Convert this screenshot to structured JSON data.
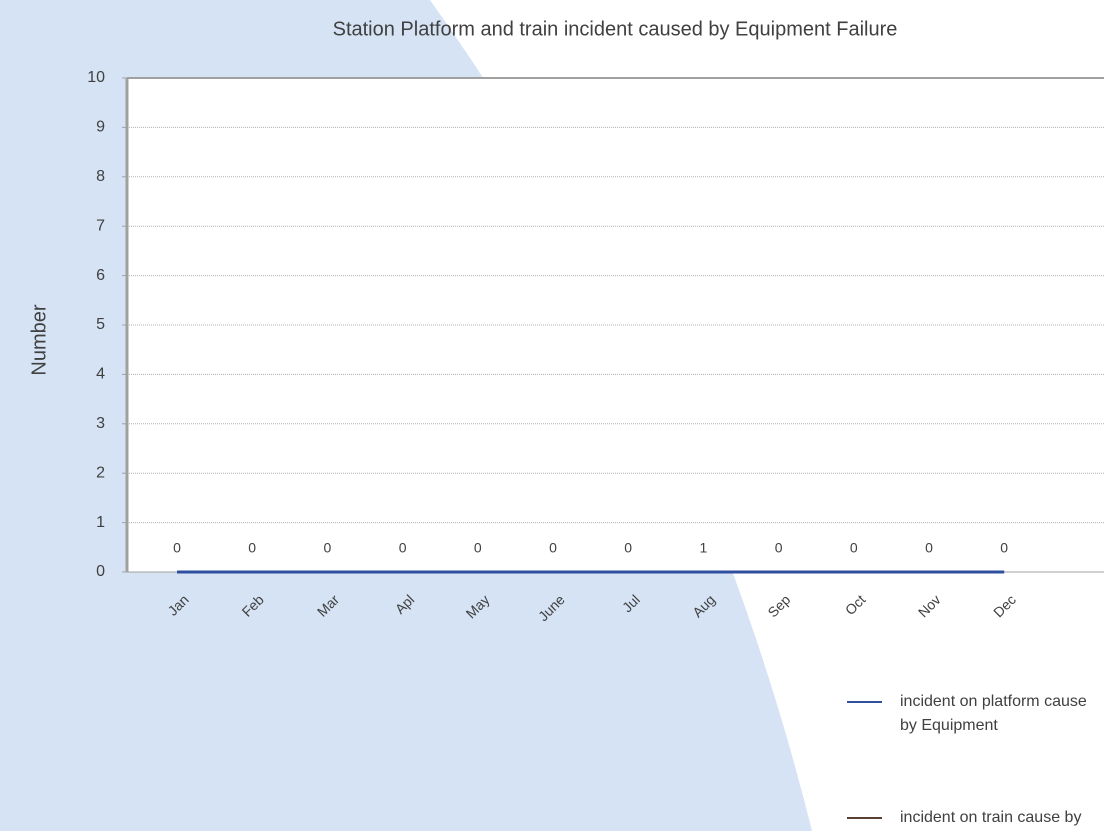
{
  "chart_data": {
    "type": "line",
    "title": "Station Platform and train incident caused by Equipment Failure",
    "y_label": "Number",
    "categories": [
      "Jan",
      "Feb",
      "Mar",
      "Apl",
      "May",
      "June",
      "Jul",
      "Aug",
      "Sep",
      "Oct",
      "Nov",
      "Dec"
    ],
    "series": [
      {
        "name": "incident on platform cause by Equipment",
        "color": "#2f4f9f",
        "values": [
          0,
          0,
          0,
          0,
          0,
          0,
          0,
          0,
          0,
          0,
          0,
          0
        ]
      },
      {
        "name": "incident on train cause by Equipment",
        "color": "#5a4030",
        "values": [
          0,
          0,
          0,
          0,
          0,
          0,
          0,
          1,
          0,
          0,
          0,
          0
        ]
      }
    ],
    "ylim": [
      0,
      10
    ],
    "yticks": [
      0,
      1,
      2,
      3,
      4,
      5,
      6,
      7,
      8,
      9,
      10
    ],
    "grid": true
  }
}
